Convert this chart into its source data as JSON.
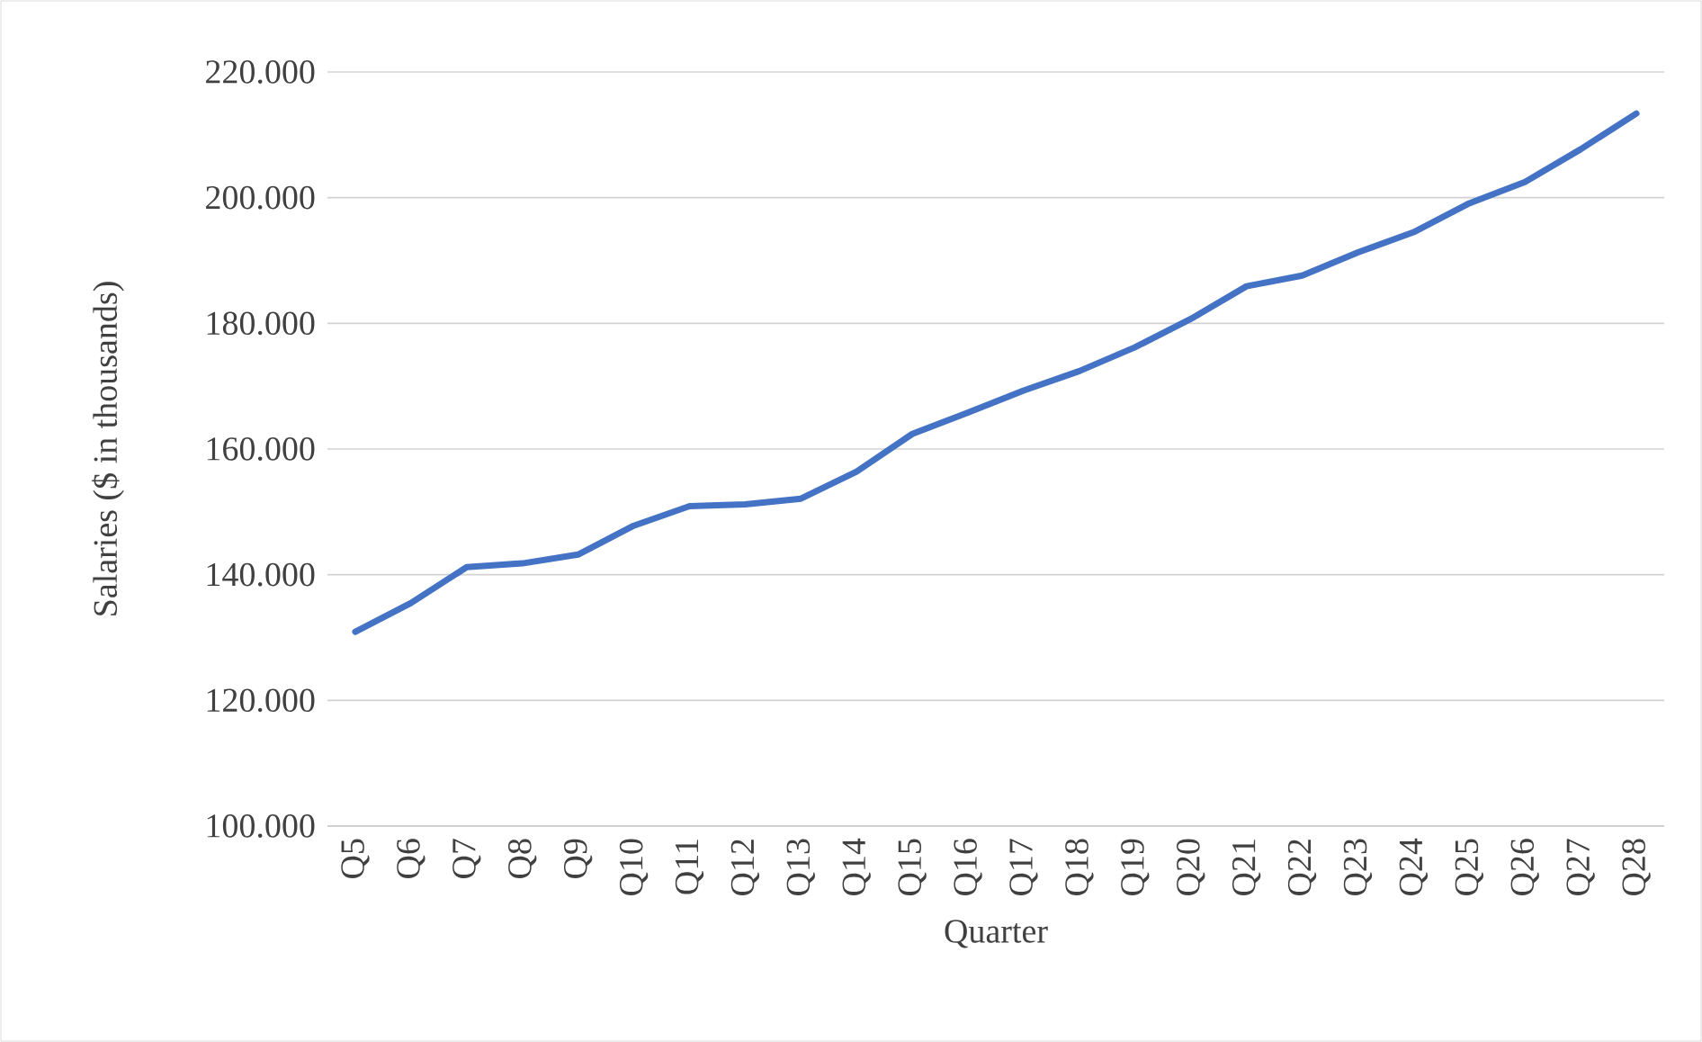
{
  "chart_data": {
    "type": "line",
    "xlabel": "Quarter",
    "ylabel": "Salaries ($ in thousands)",
    "categories": [
      "Q5",
      "Q6",
      "Q7",
      "Q8",
      "Q9",
      "Q10",
      "Q11",
      "Q12",
      "Q13",
      "Q14",
      "Q15",
      "Q16",
      "Q17",
      "Q18",
      "Q19",
      "Q20",
      "Q21",
      "Q22",
      "Q23",
      "Q24",
      "Q25",
      "Q26",
      "Q27",
      "Q28"
    ],
    "values": [
      130.9,
      135.5,
      141.2,
      141.8,
      143.2,
      147.8,
      150.9,
      151.2,
      152.1,
      156.4,
      162.4,
      165.8,
      169.3,
      172.4,
      176.2,
      180.7,
      185.9,
      187.6,
      191.3,
      194.5,
      199.1,
      202.5,
      207.7,
      213.4
    ],
    "color": "#4472c4",
    "ylim": [
      100,
      220
    ],
    "yticks": [
      {
        "value": 100,
        "label": "100.000"
      },
      {
        "value": 120,
        "label": "120.000"
      },
      {
        "value": 140,
        "label": "140.000"
      },
      {
        "value": 160,
        "label": "160.000"
      },
      {
        "value": 180,
        "label": "180.000"
      },
      {
        "value": 200,
        "label": "200.000"
      },
      {
        "value": 220,
        "label": "220.000"
      }
    ],
    "grid": "y",
    "marker": "none",
    "line_style": "solid"
  }
}
